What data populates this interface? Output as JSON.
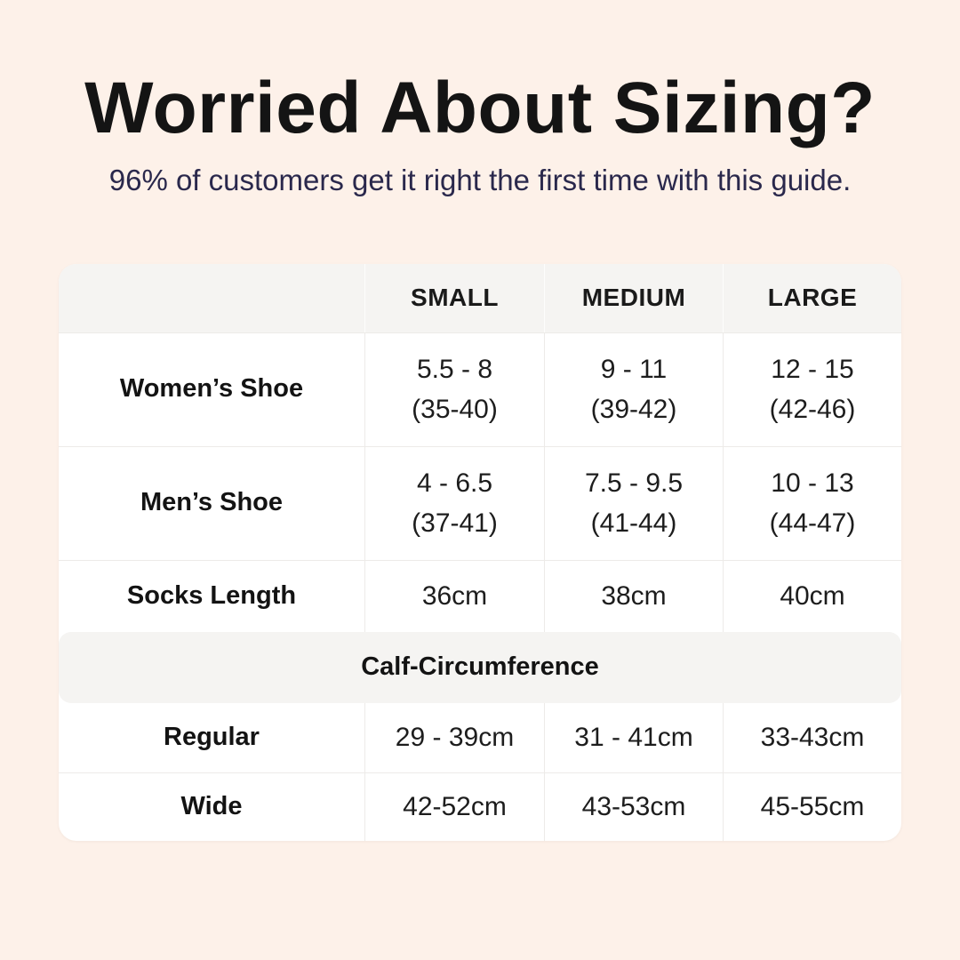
{
  "header": {
    "title": "Worried About Sizing?",
    "subtitle": "96% of customers get it right the first time with this guide."
  },
  "table": {
    "columns": [
      "",
      "SMALL",
      "MEDIUM",
      "LARGE"
    ],
    "rows": [
      {
        "label": "Women’s Shoe",
        "cells": [
          {
            "line1": "5.5 - 8",
            "line2": "(35-40)"
          },
          {
            "line1": "9 - 11",
            "line2": "(39-42)"
          },
          {
            "line1": "12 - 15",
            "line2": "(42-46)"
          }
        ]
      },
      {
        "label": "Men’s Shoe",
        "cells": [
          {
            "line1": "4 - 6.5",
            "line2": "(37-41)"
          },
          {
            "line1": "7.5 - 9.5",
            "line2": "(41-44)"
          },
          {
            "line1": "10 - 13",
            "line2": "(44-47)"
          }
        ]
      },
      {
        "label": "Socks Length",
        "cells": [
          {
            "line1": "36cm"
          },
          {
            "line1": "38cm"
          },
          {
            "line1": "40cm"
          }
        ]
      }
    ],
    "section": {
      "header": "Calf-Circumference",
      "rows": [
        {
          "label": "Regular",
          "cells": [
            {
              "line1": "29 - 39cm"
            },
            {
              "line1": "31 - 41cm"
            },
            {
              "line1": "33-43cm"
            }
          ]
        },
        {
          "label": "Wide",
          "cells": [
            {
              "line1": "42-52cm"
            },
            {
              "line1": "43-53cm"
            },
            {
              "line1": "45-55cm"
            }
          ]
        }
      ]
    }
  },
  "colors": {
    "page_background": "#fdf1e9",
    "card_background": "#ffffff",
    "header_band_background": "#f5f4f2",
    "grid_line": "#edebe8",
    "title_text": "#141414",
    "subtitle_text": "#2a284c",
    "table_text": "#1d1d1d"
  },
  "chart_data": {
    "type": "table",
    "title": "Worried About Sizing?",
    "subtitle": "96% of customers get it right the first time with this guide.",
    "columns": [
      "",
      "SMALL",
      "MEDIUM",
      "LARGE"
    ],
    "rows": [
      [
        "Women’s Shoe",
        "5.5 - 8 (35-40)",
        "9 - 11 (39-42)",
        "12 - 15 (42-46)"
      ],
      [
        "Men’s Shoe",
        "4 - 6.5 (37-41)",
        "7.5 - 9.5 (41-44)",
        "10 - 13 (44-47)"
      ],
      [
        "Socks Length",
        "36cm",
        "38cm",
        "40cm"
      ],
      [
        "Calf-Circumference",
        "",
        "",
        ""
      ],
      [
        "Regular",
        "29 - 39cm",
        "31 - 41cm",
        "33-43cm"
      ],
      [
        "Wide",
        "42-52cm",
        "43-53cm",
        "45-55cm"
      ]
    ],
    "layout": {
      "section_header_row_index": 3,
      "grid": true,
      "two_line_cells": "shoe rows show US size range on line 1 and EU size range in parentheses on line 2"
    }
  }
}
